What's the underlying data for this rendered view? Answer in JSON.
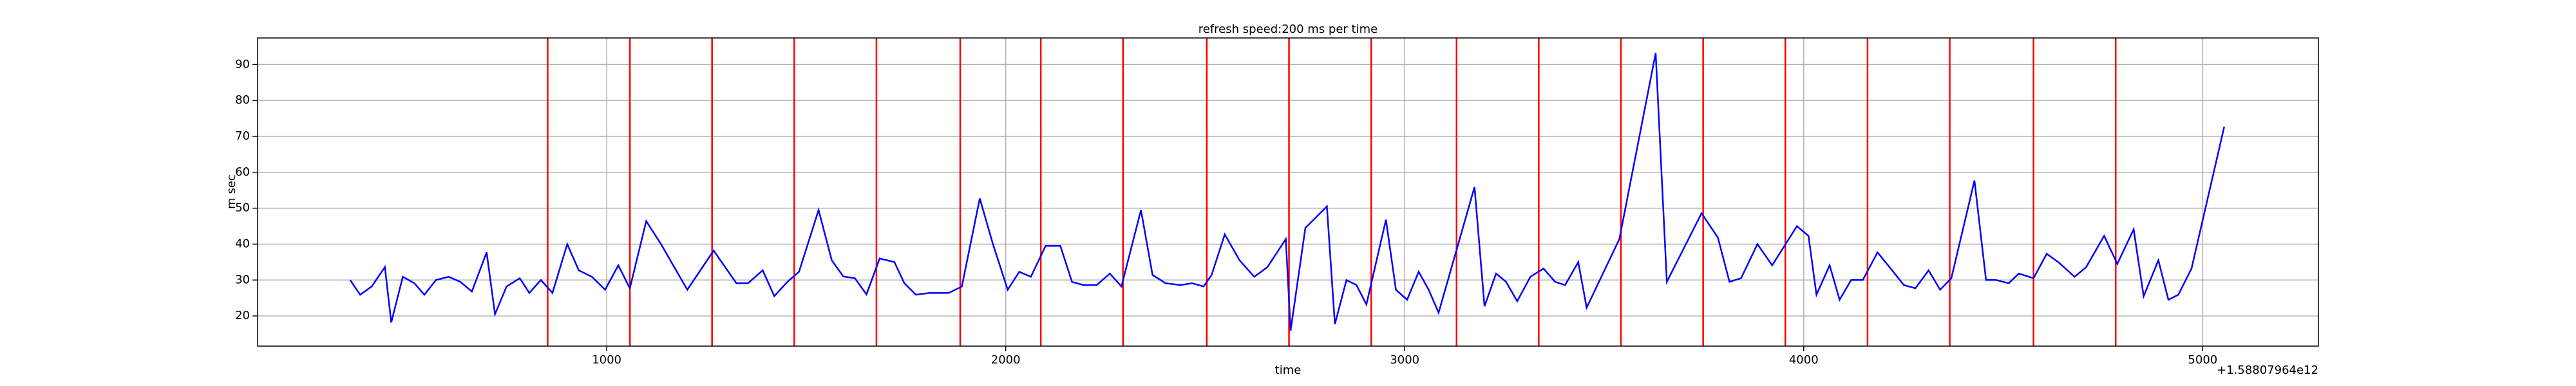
{
  "chart_data": {
    "type": "line",
    "title": "refresh speed:200 ms per time",
    "xlabel": "time",
    "ylabel": "m sec",
    "x_offset_label": "+1.58807964e12",
    "x": [
      357,
      382,
      411,
      444,
      460,
      489,
      518,
      543,
      572,
      604,
      633,
      662,
      699,
      720,
      749,
      782,
      806,
      835,
      864,
      901,
      930,
      963,
      996,
      1029,
      1058,
      1099,
      1136,
      1202,
      1268,
      1325,
      1354,
      1391,
      1420,
      1453,
      1482,
      1531,
      1564,
      1593,
      1622,
      1651,
      1684,
      1721,
      1746,
      1775,
      1808,
      1836,
      1857,
      1890,
      1935,
      1968,
      2005,
      2034,
      2063,
      2100,
      2137,
      2166,
      2195,
      2228,
      2261,
      2290,
      2339,
      2368,
      2401,
      2438,
      2467,
      2496,
      2516,
      2549,
      2586,
      2623,
      2656,
      2702,
      2714,
      2751,
      2805,
      2825,
      2854,
      2879,
      2904,
      2953,
      2978,
      3006,
      3035,
      3060,
      3085,
      3175,
      3200,
      3229,
      3254,
      3282,
      3315,
      3348,
      3377,
      3402,
      3435,
      3456,
      3538,
      3629,
      3657,
      3744,
      3785,
      3814,
      3843,
      3884,
      3921,
      3983,
      4012,
      4032,
      4065,
      4090,
      4119,
      4148,
      4185,
      4218,
      4251,
      4280,
      4313,
      4342,
      4370,
      4428,
      4457,
      4482,
      4514,
      4539,
      4576,
      4609,
      4638,
      4679,
      4708,
      4753,
      4786,
      4827,
      4852,
      4889,
      4914,
      4939,
      4972,
      5054
    ],
    "values": [
      30.0,
      25.9,
      28.2,
      33.6,
      18.2,
      30.9,
      29.1,
      25.9,
      30.0,
      30.9,
      29.5,
      26.8,
      37.7,
      20.5,
      28.2,
      30.5,
      26.4,
      30.0,
      26.4,
      40.0,
      32.7,
      30.9,
      27.3,
      34.1,
      27.7,
      46.4,
      40.0,
      27.3,
      38.2,
      29.1,
      29.1,
      32.7,
      25.5,
      29.5,
      32.3,
      49.5,
      35.5,
      31.0,
      30.5,
      26.0,
      36.0,
      35.0,
      29.1,
      25.9,
      26.4,
      26.4,
      26.4,
      28.2,
      52.7,
      40.0,
      27.3,
      32.3,
      30.9,
      39.5,
      39.5,
      29.5,
      28.6,
      28.6,
      31.8,
      28.2,
      49.5,
      31.4,
      29.1,
      28.6,
      29.1,
      28.2,
      31.4,
      42.7,
      35.5,
      30.9,
      33.6,
      41.4,
      15.9,
      44.5,
      50.5,
      17.7,
      30.0,
      28.6,
      23.2,
      46.8,
      27.3,
      24.5,
      32.3,
      27.3,
      20.9,
      55.9,
      22.7,
      31.8,
      29.5,
      24.1,
      30.9,
      33.2,
      29.5,
      28.6,
      35.0,
      22.3,
      41.4,
      93.2,
      29.5,
      48.6,
      41.8,
      29.5,
      30.5,
      40.0,
      34.1,
      45.0,
      42.3,
      25.9,
      34.1,
      24.5,
      30.0,
      30.0,
      37.7,
      33.2,
      28.6,
      27.7,
      32.7,
      27.3,
      30.5,
      57.7,
      30.0,
      30.0,
      29.1,
      31.8,
      30.5,
      37.3,
      35.0,
      30.9,
      33.6,
      42.3,
      34.5,
      44.1,
      25.5,
      35.5,
      24.5,
      25.9,
      33.2,
      72.7
    ],
    "color": "#0000ff",
    "vlines": {
      "values": [
        852,
        1058,
        1264,
        1470,
        1676,
        1886,
        2088,
        2294,
        2504,
        2710,
        2916,
        3130,
        3336,
        3542,
        3748,
        3954,
        4160,
        4366,
        4576,
        4782
      ],
      "color": "#ff0000"
    },
    "xlim": [
      125,
      5290
    ],
    "ylim": [
      11.6,
      97.4
    ],
    "xticks": [
      1000,
      2000,
      3000,
      4000,
      5000
    ],
    "yticks": [
      20,
      30,
      40,
      50,
      60,
      70,
      80,
      90
    ],
    "grid": true
  }
}
